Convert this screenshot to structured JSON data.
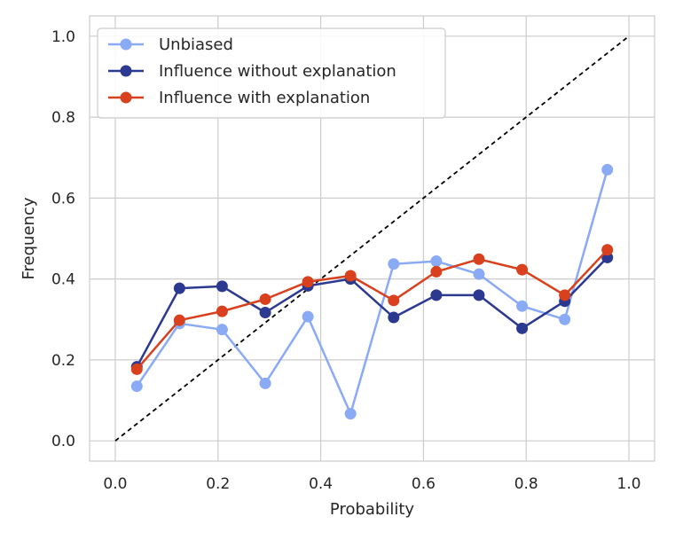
{
  "chart_data": {
    "type": "line",
    "title": "",
    "xlabel": "Probability",
    "ylabel": "Frequency",
    "xlim": [
      -0.05,
      1.05
    ],
    "ylim": [
      -0.05,
      1.05
    ],
    "grid": true,
    "legend_position": "top-left",
    "x_ticks": [
      {
        "value": 0.0,
        "label": "0.0"
      },
      {
        "value": 0.2,
        "label": "0.2"
      },
      {
        "value": 0.4,
        "label": "0.4"
      },
      {
        "value": 0.6,
        "label": "0.6"
      },
      {
        "value": 0.8,
        "label": "0.8"
      },
      {
        "value": 1.0,
        "label": "1.0"
      }
    ],
    "y_ticks": [
      {
        "value": 0.0,
        "label": "0.0"
      },
      {
        "value": 0.2,
        "label": "0.2"
      },
      {
        "value": 0.4,
        "label": "0.4"
      },
      {
        "value": 0.6,
        "label": "0.6"
      },
      {
        "value": 0.8,
        "label": "0.8"
      },
      {
        "value": 1.0,
        "label": "1.0"
      }
    ],
    "reference_line": {
      "name": "perfect-calibration",
      "x": [
        0,
        1
      ],
      "y": [
        0,
        1
      ],
      "color": "#000000",
      "style": "dashed"
    },
    "series": [
      {
        "name": "Unbiased",
        "color": "#8aaaf5",
        "x": [
          0.042,
          0.125,
          0.208,
          0.292,
          0.375,
          0.458,
          0.542,
          0.625,
          0.708,
          0.792,
          0.875,
          0.958
        ],
        "y": [
          0.135,
          0.29,
          0.275,
          0.142,
          0.307,
          0.067,
          0.437,
          0.444,
          0.412,
          0.333,
          0.3,
          0.67
        ]
      },
      {
        "name": "Influence without explanation",
        "color": "#2b3990",
        "x": [
          0.042,
          0.125,
          0.208,
          0.292,
          0.375,
          0.458,
          0.542,
          0.625,
          0.708,
          0.792,
          0.875,
          0.958
        ],
        "y": [
          0.183,
          0.377,
          0.382,
          0.317,
          0.383,
          0.4,
          0.305,
          0.36,
          0.36,
          0.278,
          0.345,
          0.453
        ]
      },
      {
        "name": "Influence with explanation",
        "color": "#d9411e",
        "x": [
          0.042,
          0.125,
          0.208,
          0.292,
          0.375,
          0.458,
          0.542,
          0.625,
          0.708,
          0.792,
          0.875,
          0.958
        ],
        "y": [
          0.177,
          0.298,
          0.32,
          0.35,
          0.393,
          0.408,
          0.347,
          0.418,
          0.449,
          0.423,
          0.36,
          0.472
        ]
      }
    ]
  }
}
